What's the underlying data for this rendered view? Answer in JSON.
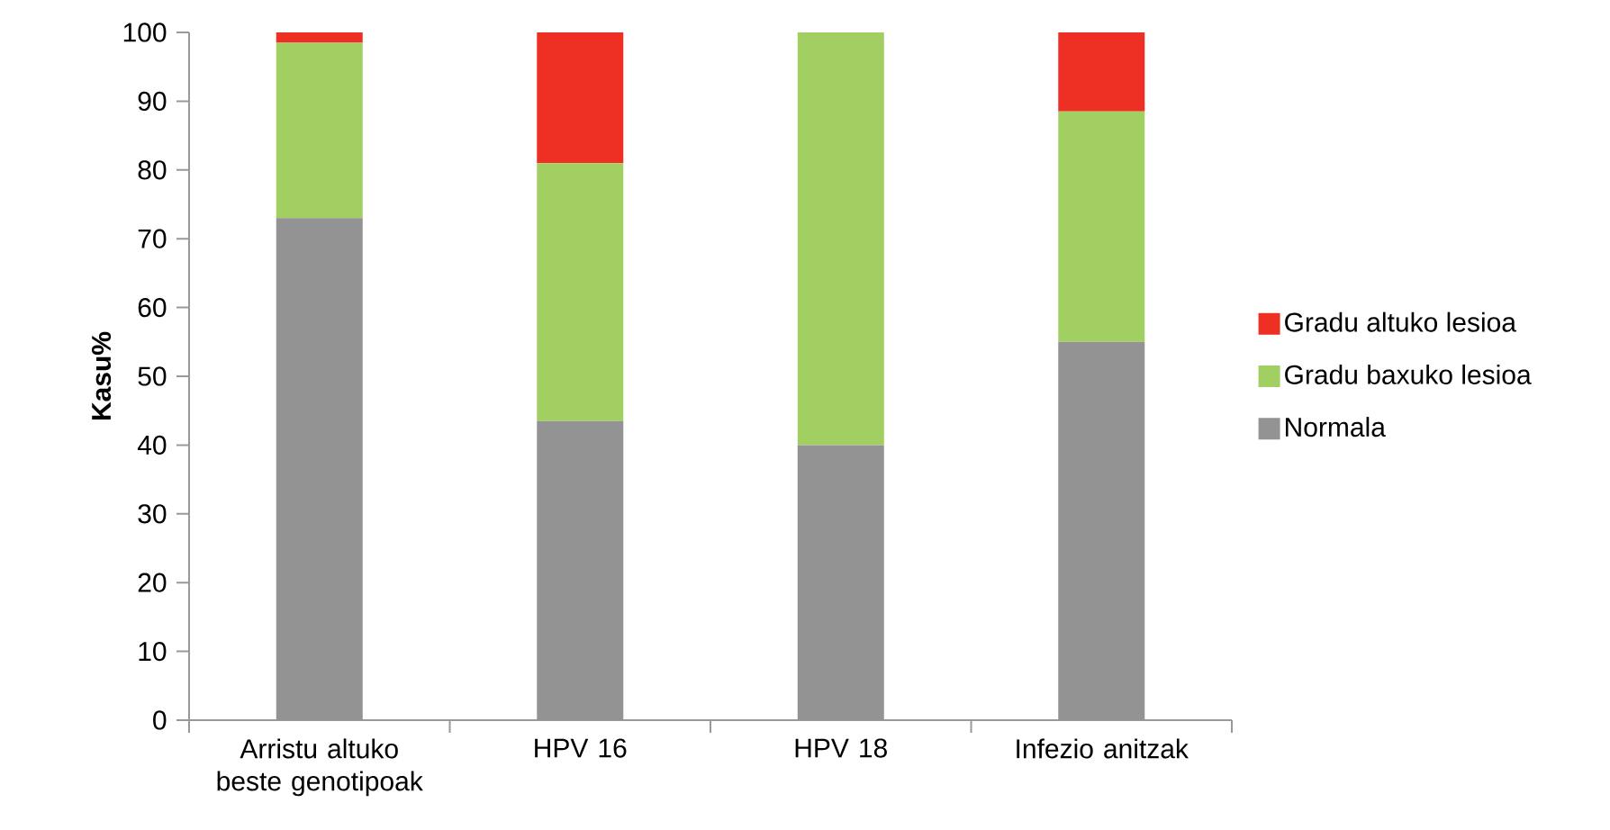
{
  "chart_data": {
    "type": "bar",
    "stacked": true,
    "ylabel": "Kasu%",
    "categories": [
      "Arristu altuko beste genotipoak",
      "HPV 16",
      "HPV 18",
      "Infezio anitzak"
    ],
    "series": [
      {
        "name": "Normala",
        "color": "#939393",
        "values": [
          73,
          43.5,
          40,
          55
        ]
      },
      {
        "name": "Gradu baxuko lesioa",
        "color": "#a2cf62",
        "values": [
          25.5,
          37.5,
          60,
          33.5
        ]
      },
      {
        "name": "Gradu altuko lesioa",
        "color": "#ee3024",
        "values": [
          1.5,
          19,
          0,
          11.5
        ]
      }
    ],
    "ylim": [
      0,
      100
    ],
    "yticks": [
      0,
      10,
      20,
      30,
      40,
      50,
      60,
      70,
      80,
      90,
      100
    ],
    "legend": "right"
  }
}
